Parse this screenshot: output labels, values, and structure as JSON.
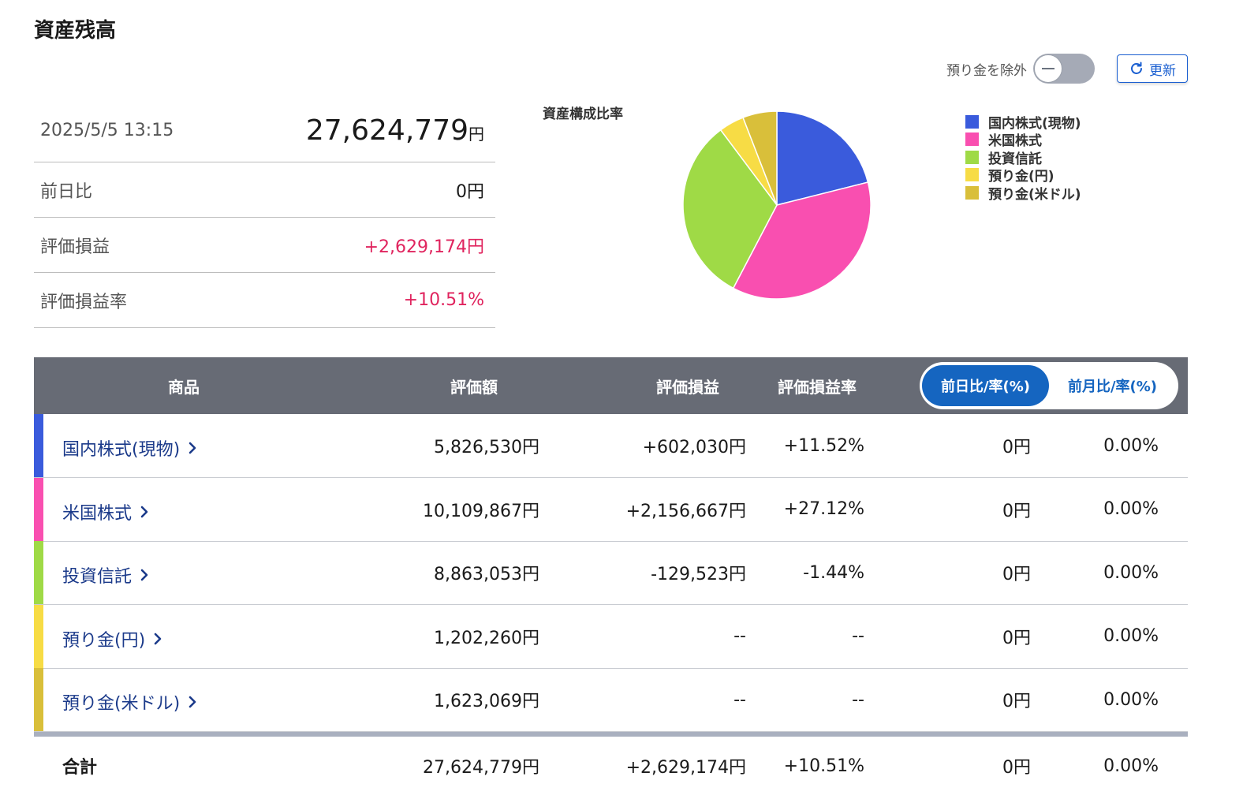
{
  "page": {
    "title": "資産残高"
  },
  "controls": {
    "exclude_label": "預り金を除外",
    "refresh_label": "更新"
  },
  "summary": {
    "datetime": "2025/5/5 13:15",
    "total_value": "27,624,779",
    "total_unit": "円",
    "rows": [
      {
        "label": "前日比",
        "value": "0円",
        "tone": "neutral"
      },
      {
        "label": "評価損益",
        "value": "+2,629,174円",
        "tone": "pos"
      },
      {
        "label": "評価損益率",
        "value": "+10.51%",
        "tone": "pos"
      }
    ]
  },
  "chart_data": {
    "type": "pie",
    "title": "資産構成比率",
    "categories": [
      "国内株式(現物)",
      "米国株式",
      "投資信託",
      "預り金(円)",
      "預り金(米ドル)"
    ],
    "values": [
      5826530,
      10109867,
      8863053,
      1202260,
      1623069
    ],
    "colors": [
      "#3a5bdc",
      "#f94fb0",
      "#9fda46",
      "#f7dc45",
      "#d9bf3a"
    ],
    "legend_position": "right"
  },
  "table": {
    "headers": {
      "product": "商品",
      "valuation": "評価額",
      "pl": "評価損益",
      "pl_rate": "評価損益率"
    },
    "period_switch": {
      "day": "前日比/率(%)",
      "month": "前月比/率(%)",
      "selected": "day"
    },
    "rows": [
      {
        "name": "国内株式(現物)",
        "color": "#3a5bdc",
        "valuation": "5,826,530円",
        "pl": "+602,030円",
        "pl_rate": "+11.52%",
        "tone": "pos",
        "change": "0円",
        "change_rate": "0.00%"
      },
      {
        "name": "米国株式",
        "color": "#f94fb0",
        "valuation": "10,109,867円",
        "pl": "+2,156,667円",
        "pl_rate": "+27.12%",
        "tone": "pos",
        "change": "0円",
        "change_rate": "0.00%"
      },
      {
        "name": "投資信託",
        "color": "#9fda46",
        "valuation": "8,863,053円",
        "pl": "-129,523円",
        "pl_rate": "-1.44%",
        "tone": "neg",
        "change": "0円",
        "change_rate": "0.00%"
      },
      {
        "name": "預り金(円)",
        "color": "#f7dc45",
        "valuation": "1,202,260円",
        "pl": "--",
        "pl_rate": "--",
        "tone": "neutral",
        "change": "0円",
        "change_rate": "0.00%"
      },
      {
        "name": "預り金(米ドル)",
        "color": "#d9bf3a",
        "valuation": "1,623,069円",
        "pl": "--",
        "pl_rate": "--",
        "tone": "neutral",
        "change": "0円",
        "change_rate": "0.00%"
      }
    ],
    "total": {
      "label": "合計",
      "valuation": "27,624,779円",
      "pl": "+2,629,174円",
      "pl_rate": "+10.51%",
      "change": "0円",
      "change_rate": "0.00%"
    }
  }
}
